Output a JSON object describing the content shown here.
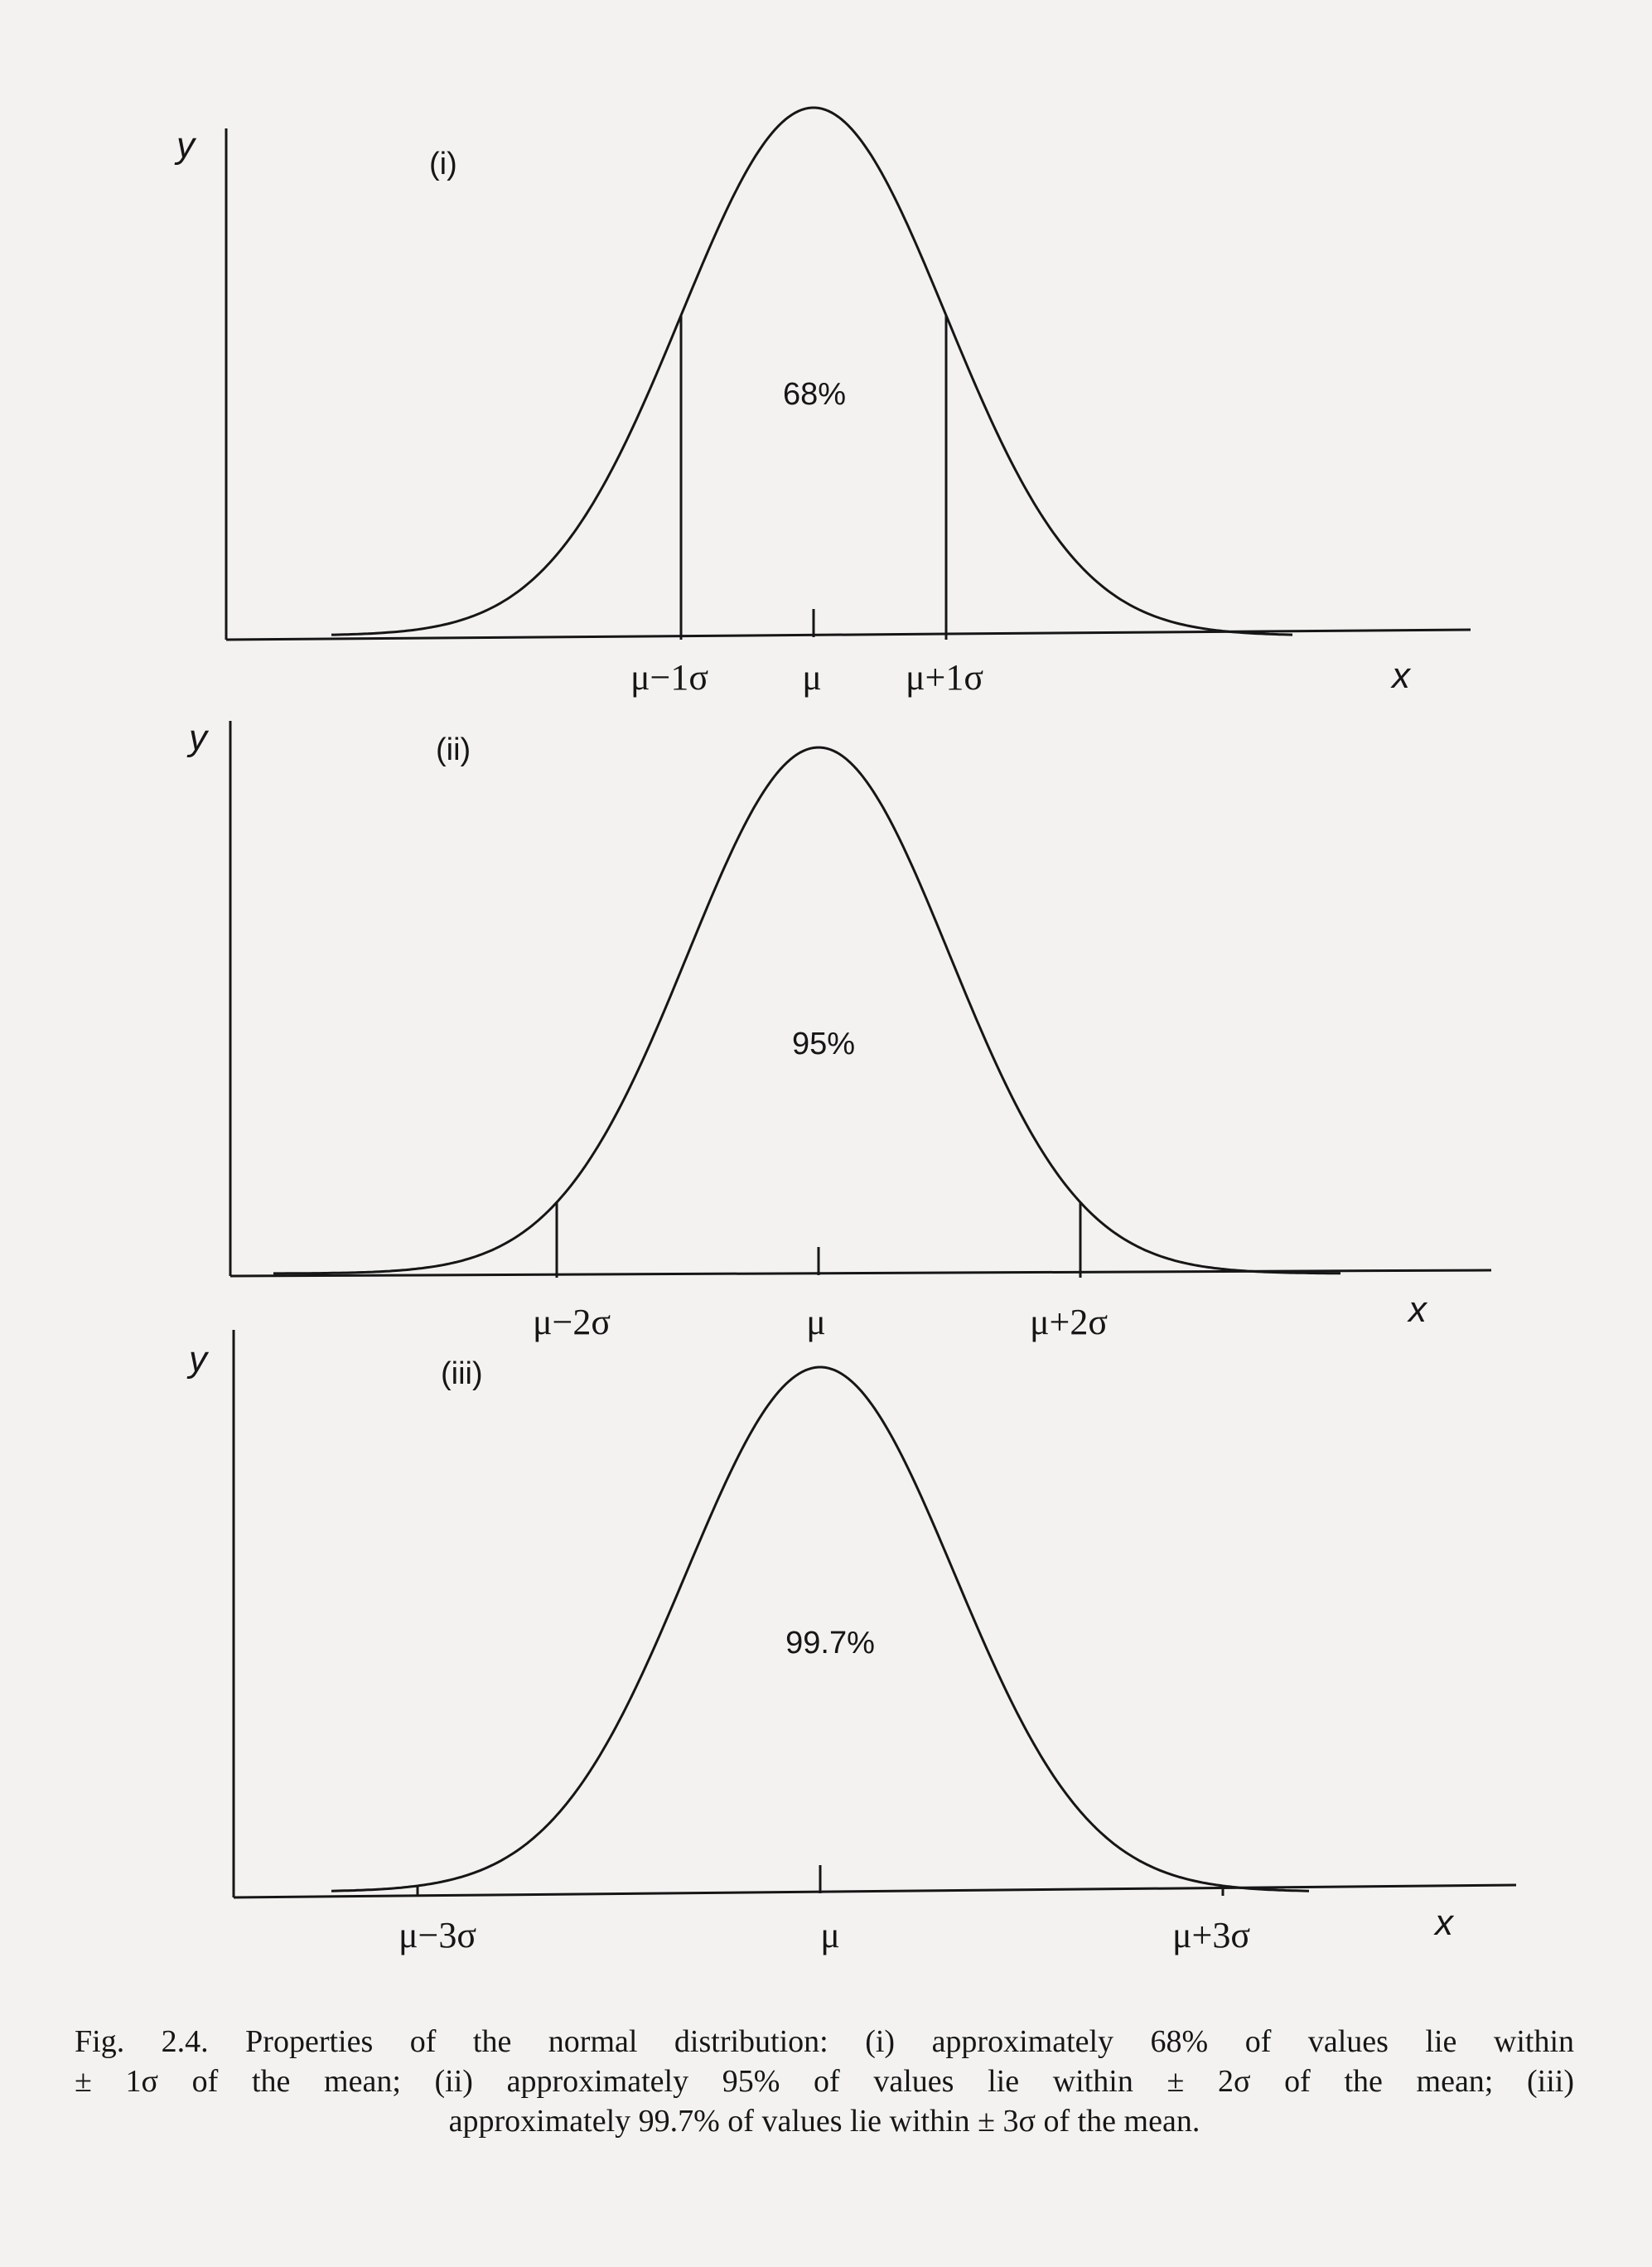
{
  "chart_data": [
    {
      "type": "line",
      "panel_label": "(i)",
      "ylabel": "y",
      "xlabel": "x",
      "area_label": "68%",
      "bounds_sigma": [
        -1,
        1
      ],
      "tick_labels": [
        "μ−1σ",
        "μ",
        "μ+1σ"
      ]
    },
    {
      "type": "line",
      "panel_label": "(ii)",
      "ylabel": "y",
      "xlabel": "x",
      "area_label": "95%",
      "bounds_sigma": [
        -2,
        2
      ],
      "tick_labels": [
        "μ−2σ",
        "μ",
        "μ+2σ"
      ]
    },
    {
      "type": "line",
      "panel_label": "(iii)",
      "ylabel": "y",
      "xlabel": "x",
      "area_label": "99.7%",
      "bounds_sigma": [
        -3,
        3
      ],
      "tick_labels": [
        "μ−3σ",
        "μ",
        "μ+3σ"
      ]
    }
  ],
  "caption": {
    "lines": [
      "Fig. 2.4.   Properties of the normal distribution: (i) approximately 68% of values lie within",
      "± 1σ of the mean; (ii) approximately 95% of values lie within ± 2σ of the mean; (iii)",
      "approximately 99.7% of values lie within ± 3σ of the mean."
    ]
  }
}
